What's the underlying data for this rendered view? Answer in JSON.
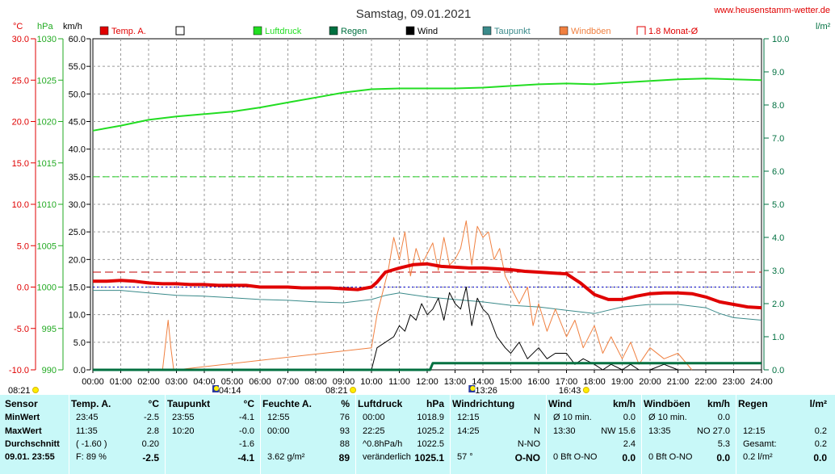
{
  "header": {
    "title": "Samstag, 09.01.2021",
    "site": "www.heusenstamm-wetter.de"
  },
  "axes": {
    "left_units": [
      "°C",
      "hPa",
      "km/h"
    ],
    "right_unit": "l/m²",
    "temp_ticks": [
      "30.0",
      "25.0",
      "20.0",
      "15.0",
      "10.0",
      "5.0",
      "0.0",
      "-5.0",
      "-10.0"
    ],
    "pressure_ticks": [
      "1030",
      "1025",
      "1020",
      "1015",
      "1010",
      "1005",
      "1000",
      "995",
      "990"
    ],
    "wind_ticks": [
      "60.0",
      "55.0",
      "50.0",
      "45.0",
      "40.0",
      "35.0",
      "30.0",
      "25.0",
      "20.0",
      "15.0",
      "10.0",
      "5.0",
      "0.0"
    ],
    "rain_ticks": [
      "10.0",
      "9.0",
      "8.0",
      "7.0",
      "6.0",
      "5.0",
      "4.0",
      "3.0",
      "2.0",
      "1.0",
      "0.0"
    ],
    "time_ticks": [
      "00:00",
      "01:00",
      "02:00",
      "03:00",
      "04:00",
      "05:00",
      "06:00",
      "07:00",
      "08:00",
      "09:00",
      "10:00",
      "11:00",
      "12:00",
      "13:00",
      "14:00",
      "15:00",
      "16:00",
      "17:00",
      "18:00",
      "19:00",
      "20:00",
      "21:00",
      "22:00",
      "23:00",
      "24:00"
    ]
  },
  "legend": [
    {
      "label": "Temp. A.",
      "color": "#e00000",
      "type": "filled"
    },
    {
      "label": "",
      "color": "#000000",
      "type": "open"
    },
    {
      "label": "Luftdruck",
      "color": "#22dd22",
      "type": "filled"
    },
    {
      "label": "Regen",
      "color": "#007040",
      "type": "filled"
    },
    {
      "label": "Wind",
      "color": "#000000",
      "type": "filled"
    },
    {
      "label": "Taupunkt",
      "color": "#3a8a8a",
      "type": "filled"
    },
    {
      "label": "Windböen",
      "color": "#f08040",
      "type": "filled"
    },
    {
      "label": "1.8 Monat-Ø",
      "color": "#e00000",
      "type": "bracket"
    }
  ],
  "sun_markers": [
    {
      "label": "08:21",
      "x_hour": -0.7,
      "icon": "sun"
    },
    {
      "label": "04:14",
      "x_hour": 4.23,
      "icon": "moon"
    },
    {
      "label": "08:21",
      "x_hour": 8.35,
      "icon": "sun"
    },
    {
      "label": "13:26",
      "x_hour": 13.43,
      "icon": "moon"
    },
    {
      "label": "16:43",
      "x_hour": 16.72,
      "icon": "sun"
    }
  ],
  "chart_data": {
    "type": "line",
    "x_unit": "hour",
    "xlim": [
      0,
      24
    ],
    "temp_ylim": [
      -10,
      30
    ],
    "pressure_ylim": [
      990,
      1030
    ],
    "wind_ylim": [
      0,
      60
    ],
    "rain_ylim": [
      0,
      10
    ],
    "monthly_avg_temp": 1.8,
    "reference_lines": [
      {
        "axis": "temp",
        "value": 0.0,
        "color": "#0000cc"
      },
      {
        "axis": "wind",
        "value": 35,
        "color": "#22cc22"
      }
    ],
    "series": [
      {
        "name": "Temp. A.",
        "axis": "temp",
        "color": "#e00000",
        "width": 4,
        "x": [
          0,
          0.5,
          1,
          1.5,
          2,
          2.5,
          3,
          3.5,
          4,
          4.5,
          5,
          5.5,
          6,
          6.5,
          7,
          7.5,
          8,
          8.5,
          9,
          9.5,
          10,
          10.2,
          10.5,
          11,
          11.5,
          12,
          12.5,
          13,
          13.5,
          14,
          14.5,
          15,
          15.5,
          16,
          16.5,
          17,
          17.5,
          18,
          18.5,
          19,
          19.5,
          20,
          20.5,
          21,
          21.5,
          22,
          22.5,
          23,
          23.5,
          24
        ],
        "y": [
          0.7,
          0.7,
          0.8,
          0.7,
          0.5,
          0.4,
          0.4,
          0.3,
          0.3,
          0.2,
          0.2,
          0.2,
          0.0,
          0.0,
          0.0,
          -0.1,
          -0.1,
          -0.1,
          -0.2,
          -0.3,
          0.0,
          0.6,
          1.8,
          2.3,
          2.7,
          2.8,
          2.5,
          2.4,
          2.3,
          2.3,
          2.2,
          2.1,
          1.9,
          1.8,
          1.7,
          1.6,
          0.5,
          -0.9,
          -1.5,
          -1.5,
          -1.1,
          -0.8,
          -0.7,
          -0.7,
          -0.8,
          -1.2,
          -1.8,
          -2.1,
          -2.4,
          -2.5
        ]
      },
      {
        "name": "Taupunkt",
        "axis": "temp",
        "color": "#3a8a8a",
        "width": 1,
        "x": [
          0,
          1,
          2,
          3,
          4,
          5,
          6,
          7,
          8,
          9,
          10,
          10.5,
          11,
          12,
          13,
          14,
          15,
          16,
          17,
          18,
          19,
          20,
          21,
          22,
          22.5,
          23,
          24
        ],
        "y": [
          -0.4,
          -0.4,
          -0.7,
          -1.0,
          -1.1,
          -1.3,
          -1.5,
          -1.6,
          -1.8,
          -1.9,
          -1.5,
          -1.0,
          -0.7,
          -1.2,
          -1.5,
          -1.8,
          -2.2,
          -2.4,
          -2.8,
          -3.2,
          -2.4,
          -2.1,
          -2.1,
          -2.5,
          -3.2,
          -3.7,
          -4.0
        ]
      },
      {
        "name": "Luftdruck",
        "axis": "pressure",
        "color": "#22dd22",
        "width": 2,
        "x": [
          0,
          1,
          2,
          3,
          4,
          5,
          6,
          7,
          8,
          9,
          10,
          11,
          12,
          13,
          14,
          15,
          16,
          17,
          18,
          19,
          20,
          21,
          22,
          23,
          24
        ],
        "y": [
          1018.9,
          1019.5,
          1020.2,
          1020.6,
          1020.9,
          1021.2,
          1021.7,
          1022.3,
          1022.9,
          1023.5,
          1023.9,
          1024.0,
          1024.0,
          1024.0,
          1024.1,
          1024.3,
          1024.5,
          1024.6,
          1024.5,
          1024.7,
          1024.9,
          1025.1,
          1025.2,
          1025.1,
          1025.0
        ]
      },
      {
        "name": "Wind",
        "axis": "wind",
        "color": "#000000",
        "width": 1,
        "x": [
          10,
          10.2,
          10.5,
          10.8,
          11,
          11.2,
          11.4,
          11.6,
          11.8,
          12,
          12.2,
          12.4,
          12.6,
          12.8,
          13,
          13.2,
          13.4,
          13.6,
          13.8,
          14,
          14.2,
          14.5,
          14.8,
          15,
          15.3,
          15.6,
          16,
          16.3,
          16.6,
          17,
          17.3,
          17.6,
          18,
          18.3,
          18.6,
          19,
          19.3,
          19.6,
          20,
          20.5,
          21
        ],
        "y": [
          0,
          4,
          5,
          6,
          8,
          7,
          10,
          9,
          12,
          10,
          11,
          13,
          9,
          14,
          12,
          11,
          15,
          8,
          13,
          11,
          10,
          6,
          4,
          3,
          5,
          2,
          4,
          2,
          3,
          3,
          1,
          2,
          1,
          0,
          1,
          0,
          1,
          0,
          0,
          1,
          0
        ]
      },
      {
        "name": "Windböen",
        "axis": "wind",
        "color": "#f08040",
        "width": 1,
        "x": [
          2.5,
          2.7,
          2.8,
          2.9,
          3.0,
          10.0,
          10.2,
          10.4,
          10.6,
          10.8,
          11.0,
          11.2,
          11.4,
          11.6,
          11.8,
          12.0,
          12.2,
          12.4,
          12.6,
          12.8,
          13.0,
          13.2,
          13.4,
          13.6,
          13.8,
          14.0,
          14.2,
          14.4,
          14.6,
          14.8,
          15.0,
          15.3,
          15.6,
          15.8,
          16.0,
          16.3,
          16.6,
          17.0,
          17.3,
          17.6,
          18.0,
          18.3,
          18.6,
          19.0,
          19.3,
          19.6,
          20.0,
          20.5,
          21.0,
          21.5
        ],
        "y": [
          0,
          9,
          4,
          0,
          0,
          4,
          10,
          14,
          18,
          24,
          20,
          25,
          17,
          22,
          19,
          21,
          23,
          18,
          24,
          19,
          20,
          22,
          27,
          19,
          26,
          24,
          25,
          20,
          22,
          17,
          15,
          12,
          15,
          8,
          12,
          7,
          11,
          6,
          9,
          4,
          8,
          3,
          6,
          2,
          5,
          1,
          4,
          2,
          3,
          0
        ]
      },
      {
        "name": "Regen",
        "axis": "rain",
        "color": "#007040",
        "width": 3,
        "x": [
          0,
          12.1,
          12.2,
          24
        ],
        "y": [
          0,
          0,
          0.2,
          0.2
        ]
      }
    ]
  },
  "table": {
    "row_labels": [
      "Sensor",
      "MinWert",
      "MaxWert",
      "Durchschnitt",
      "09.01. 23:55"
    ],
    "cols": [
      {
        "head": "Temp. A.",
        "unit": "°C",
        "rows": [
          [
            "23:45",
            "-2.5"
          ],
          [
            "11:35",
            "2.8"
          ],
          [
            "( -1.60 )",
            "0.20"
          ],
          [
            "F: 89 %",
            "-2.5"
          ]
        ]
      },
      {
        "head": "Taupunkt",
        "unit": "°C",
        "rows": [
          [
            "23:55",
            "-4.1"
          ],
          [
            "10:20",
            "-0.0"
          ],
          [
            "",
            "-1.6"
          ],
          [
            "",
            "-4.1"
          ]
        ]
      },
      {
        "head": "Feuchte A.",
        "unit": "%",
        "rows": [
          [
            "12:55",
            "76"
          ],
          [
            "00:00",
            "93"
          ],
          [
            "",
            "88"
          ],
          [
            "3.62 g/m²",
            "89"
          ]
        ]
      },
      {
        "head": "Luftdruck",
        "unit": "hPa",
        "rows": [
          [
            "00:00",
            "1018.9"
          ],
          [
            "22:25",
            "1025.2"
          ],
          [
            "^0.8hPa/h",
            "1022.5"
          ],
          [
            "veränderlich",
            "1025.1"
          ]
        ]
      },
      {
        "head": "Windrichtung",
        "unit": "",
        "rows": [
          [
            "12:15",
            "N"
          ],
          [
            "14:25",
            "N"
          ],
          [
            "",
            "N-NO"
          ],
          [
            "57 °",
            "O-NO"
          ]
        ]
      },
      {
        "head": "Wind",
        "unit": "km/h",
        "rows": [
          [
            "Ø 10 min.",
            "0.0"
          ],
          [
            "13:30",
            "NW 15.6"
          ],
          [
            "",
            "2.4"
          ],
          [
            "0 Bft O-NO",
            "0.0"
          ]
        ]
      },
      {
        "head": "Windböen",
        "unit": "km/h",
        "rows": [
          [
            "Ø 10 min.",
            "0.0"
          ],
          [
            "13:35",
            "NO 27.0"
          ],
          [
            "",
            "5.3"
          ],
          [
            "0 Bft O-NO",
            "0.0"
          ]
        ]
      },
      {
        "head": "Regen",
        "unit": "l/m²",
        "rows": [
          [
            "",
            ""
          ],
          [
            "12:15",
            "0.2"
          ],
          [
            "Gesamt:",
            "0.2"
          ],
          [
            "0.2 l/m²",
            "0.0"
          ]
        ]
      }
    ]
  }
}
